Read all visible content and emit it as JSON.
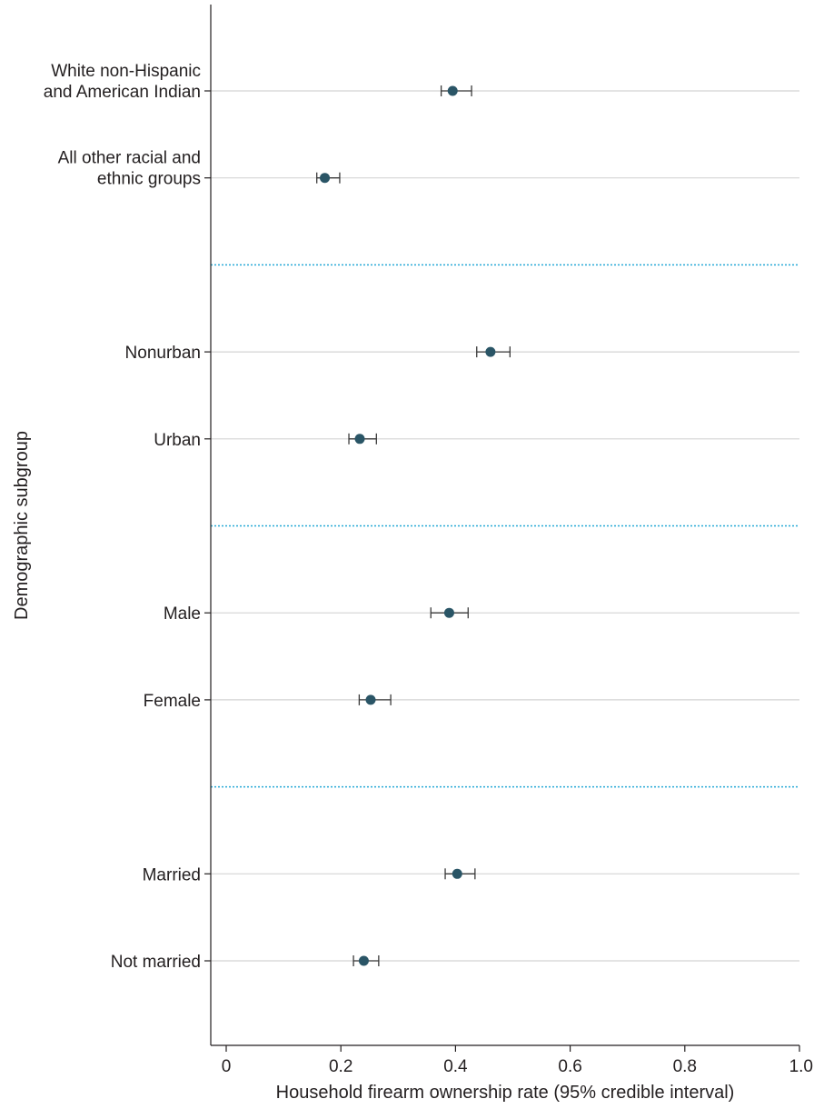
{
  "chart_data": {
    "type": "scatter",
    "subtype": "forest-plot",
    "xlabel": "Household firearm ownership rate (95% credible interval)",
    "ylabel": "Demographic subgroup",
    "xlim": [
      0,
      1.0
    ],
    "xticks": [
      0,
      0.2,
      0.4,
      0.6,
      0.8,
      1.0
    ],
    "xtick_labels": [
      "0",
      "0.2",
      "0.4",
      "0.6",
      "0.8",
      "1.0"
    ],
    "grid": "horizontal row lines",
    "groups": [
      {
        "rows": [
          {
            "label": [
              "White non-Hispanic",
              "and American Indian"
            ],
            "estimate": 0.395,
            "lower": 0.375,
            "upper": 0.428
          },
          {
            "label": [
              "All other racial and",
              "ethnic groups"
            ],
            "estimate": 0.172,
            "lower": 0.158,
            "upper": 0.198
          }
        ]
      },
      {
        "rows": [
          {
            "label": [
              "Nonurban"
            ],
            "estimate": 0.461,
            "lower": 0.437,
            "upper": 0.495
          },
          {
            "label": [
              "Urban"
            ],
            "estimate": 0.233,
            "lower": 0.214,
            "upper": 0.262
          }
        ]
      },
      {
        "rows": [
          {
            "label": [
              "Male"
            ],
            "estimate": 0.389,
            "lower": 0.357,
            "upper": 0.422
          },
          {
            "label": [
              "Female"
            ],
            "estimate": 0.252,
            "lower": 0.232,
            "upper": 0.287
          }
        ]
      },
      {
        "rows": [
          {
            "label": [
              "Married"
            ],
            "estimate": 0.403,
            "lower": 0.382,
            "upper": 0.434
          },
          {
            "label": [
              "Not married"
            ],
            "estimate": 0.24,
            "lower": 0.222,
            "upper": 0.266
          }
        ]
      }
    ],
    "colors": {
      "point": "#2a5566",
      "ci": "#3a3a3a",
      "row_line": "#d4d4d4",
      "separator": "#27a9d6",
      "axis": "#231f20"
    }
  }
}
